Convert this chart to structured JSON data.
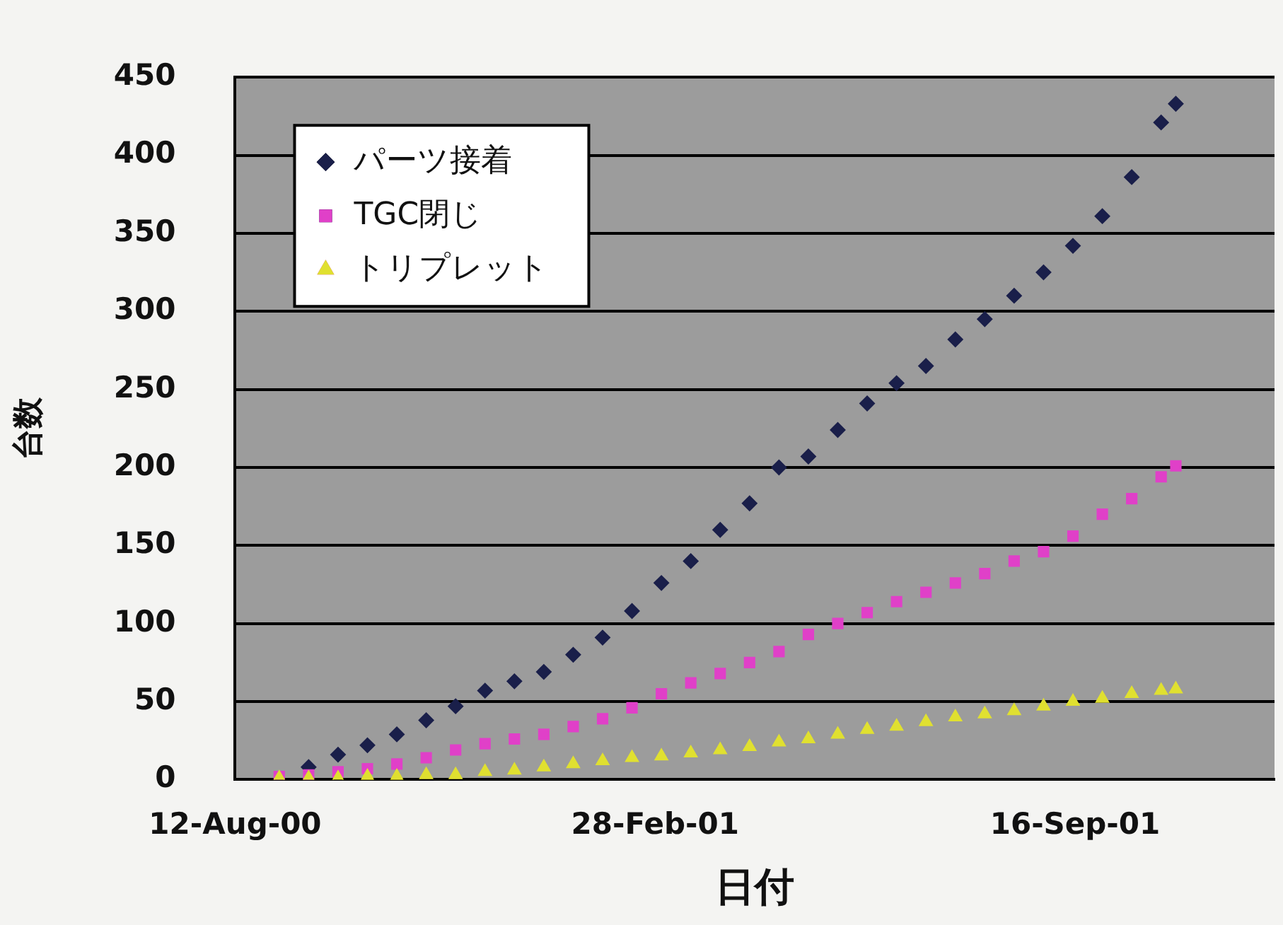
{
  "chart_data": {
    "type": "scatter",
    "xlabel": "日付",
    "ylabel": "台数",
    "x": [
      "2000-09-02",
      "2000-09-16",
      "2000-09-30",
      "2000-10-14",
      "2000-10-28",
      "2000-11-11",
      "2000-11-25",
      "2000-12-09",
      "2000-12-23",
      "2001-01-06",
      "2001-01-20",
      "2001-02-03",
      "2001-02-17",
      "2001-03-03",
      "2001-03-17",
      "2001-03-31",
      "2001-04-14",
      "2001-04-28",
      "2001-05-12",
      "2001-05-26",
      "2001-06-09",
      "2001-06-23",
      "2001-07-07",
      "2001-07-21",
      "2001-08-04",
      "2001-08-18",
      "2001-09-01",
      "2001-09-15",
      "2001-09-29",
      "2001-10-13",
      "2001-10-27",
      "2001-11-03"
    ],
    "series": [
      {
        "name": "パーツ接着",
        "color": "#1a1f4a",
        "marker": "diamond",
        "values": [
          null,
          8,
          16,
          22,
          29,
          38,
          47,
          57,
          63,
          69,
          80,
          91,
          108,
          126,
          140,
          160,
          177,
          200,
          207,
          224,
          241,
          254,
          265,
          282,
          295,
          310,
          325,
          342,
          361,
          386,
          421,
          433
        ]
      },
      {
        "name": "TGC閉じ",
        "color": "#e040c8",
        "marker": "square",
        "values": [
          2,
          3,
          5,
          7,
          10,
          14,
          19,
          23,
          26,
          29,
          34,
          39,
          46,
          55,
          62,
          68,
          75,
          82,
          93,
          100,
          107,
          114,
          120,
          126,
          132,
          140,
          146,
          156,
          170,
          180,
          194,
          201
        ]
      },
      {
        "name": "トリプレット",
        "color": "#e0e030",
        "marker": "triangle",
        "values": [
          1,
          1,
          1,
          2,
          2,
          3,
          3,
          5,
          6,
          8,
          10,
          12,
          14,
          15,
          17,
          19,
          21,
          24,
          26,
          29,
          32,
          34,
          37,
          40,
          42,
          44,
          47,
          50,
          52,
          55,
          57,
          58
        ]
      }
    ],
    "xlim": [
      "2000-08-12",
      "2001-12-20"
    ],
    "xticks": [
      {
        "value": "2000-08-12",
        "label": "12-Aug-00"
      },
      {
        "value": "2001-02-28",
        "label": "28-Feb-01"
      },
      {
        "value": "2001-09-16",
        "label": "16-Sep-01"
      }
    ],
    "ylim": [
      0,
      450
    ],
    "yticks": [
      0,
      50,
      100,
      150,
      200,
      250,
      300,
      350,
      400,
      450
    ],
    "grid": "y",
    "legend": "top left"
  }
}
